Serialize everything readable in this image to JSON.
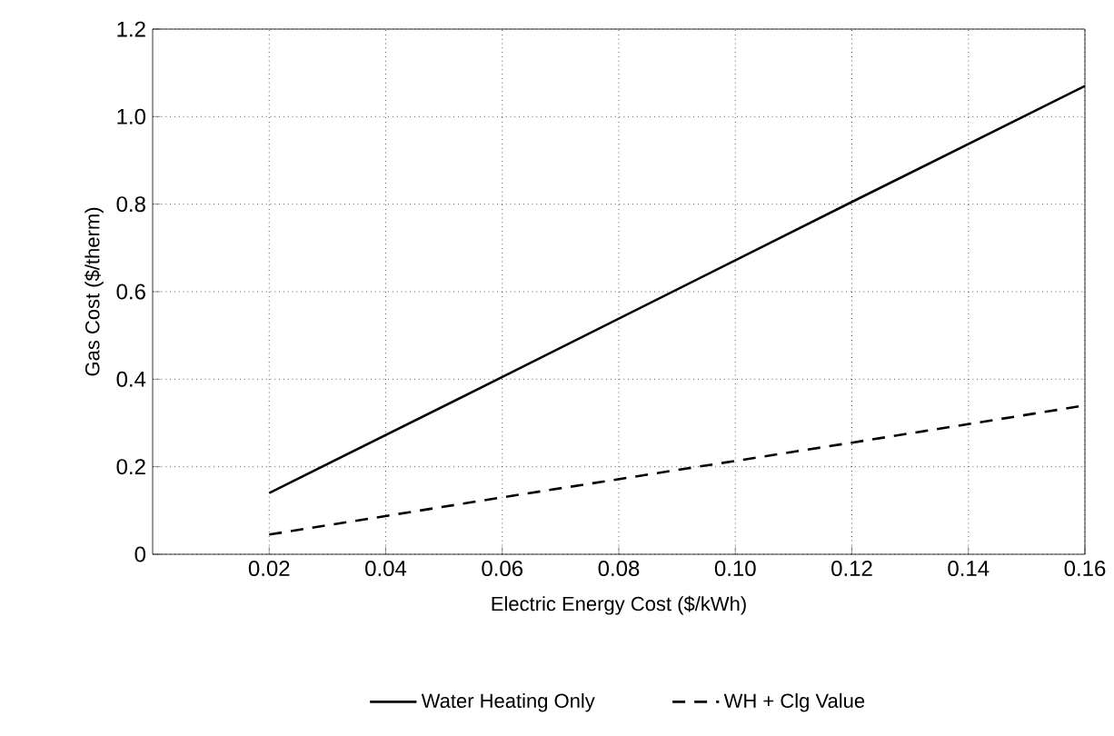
{
  "chart_data": {
    "type": "line",
    "xlabel": "Electric Energy Cost ($/kWh)",
    "ylabel": "Gas Cost ($/therm)",
    "x": [
      0.02,
      0.06,
      0.12,
      0.16
    ],
    "series": [
      {
        "name": "Water Heating Only",
        "color": "#000000",
        "line_style": "solid",
        "values": [
          0.14,
          0.405,
          0.805,
          1.07
        ]
      },
      {
        "name": "WH + Clg Value",
        "color": "#000000",
        "line_style": "dashed",
        "values": [
          0.045,
          0.13,
          0.255,
          0.34
        ]
      }
    ],
    "xlim": [
      0,
      0.16
    ],
    "ylim": [
      0,
      1.2
    ],
    "xticks": [
      0.02,
      0.04,
      0.06,
      0.08,
      {
        "value": 0.1,
        "label": "0.10"
      },
      0.12,
      0.14,
      0.16
    ],
    "yticks": [
      0,
      0.2,
      0.4,
      0.6,
      0.8,
      {
        "value": 1,
        "label": "1.0"
      },
      1.2
    ],
    "grid": true,
    "legend": "bottom",
    "marker": "none"
  }
}
